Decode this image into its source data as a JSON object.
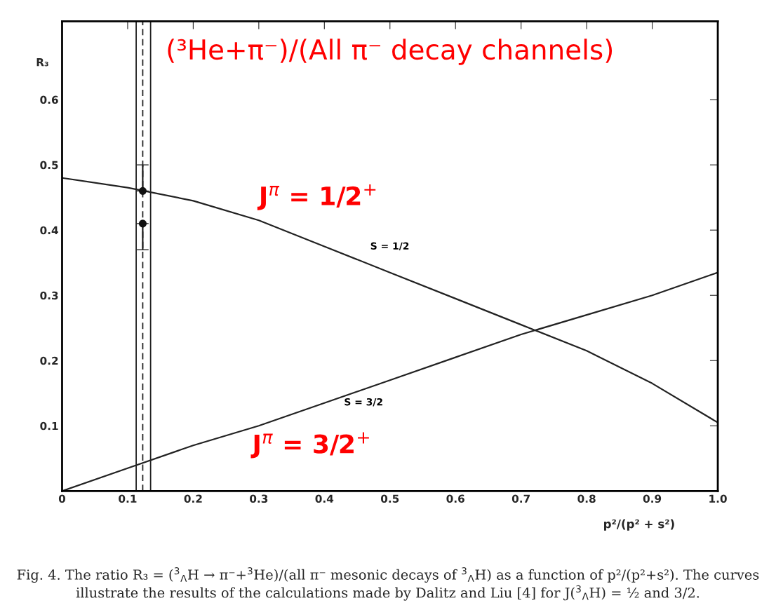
{
  "chart_data": {
    "type": "line",
    "title": "(³He+π⁻)/(All π⁻ decay channels)",
    "ylabel": "R₃",
    "xlabel": "p²/(p² + s²)",
    "xlim": [
      0,
      1.0
    ],
    "ylim": [
      0,
      0.72
    ],
    "xticks": [
      0,
      0.1,
      0.2,
      0.3,
      0.4,
      0.5,
      0.6,
      0.7,
      0.8,
      0.9,
      {
        "value": 1.0,
        "label": "1.0"
      }
    ],
    "yticks": [
      0.1,
      0.2,
      0.3,
      0.4,
      0.5,
      0.6
    ],
    "grid": false,
    "series": [
      {
        "color": "#222222",
        "x": [
          0,
          0.1,
          0.2,
          0.3,
          0.4,
          0.5,
          0.6,
          0.7,
          0.8,
          0.9,
          1.0
        ],
        "values": [
          0.48,
          0.465,
          0.445,
          0.415,
          0.375,
          0.335,
          0.295,
          0.255,
          0.215,
          0.165,
          0.105
        ]
      },
      {
        "color": "#222222",
        "x": [
          0,
          0.1,
          0.2,
          0.3,
          0.4,
          0.5,
          0.6,
          0.7,
          0.8,
          0.9,
          1.0
        ],
        "values": [
          0,
          0.035,
          0.07,
          0.1,
          0.135,
          0.17,
          0.205,
          0.24,
          0.27,
          0.3,
          0.335
        ]
      },
      {
        "type": "scatter",
        "color": "#111111",
        "x": [
          0.123,
          0.123
        ],
        "values": [
          0.46,
          0.41
        ],
        "errors": [
          [
            0.46,
            0.5
          ],
          [
            0.37,
            0.41
          ]
        ]
      }
    ],
    "ref_lines": [
      {
        "axis": "x",
        "value": 0.113,
        "line_style": "solid",
        "color": "#222222"
      },
      {
        "axis": "x",
        "value": 0.123,
        "line_style": "dashed",
        "color": "#222222"
      },
      {
        "axis": "x",
        "value": 0.135,
        "line_style": "solid",
        "color": "#222222"
      }
    ],
    "annotations": [
      "J$^{π}$ = 1/2$^{+}$",
      "S = 1/2",
      "S = 3/2",
      "J$^{π}$ = 3/2$^{+}$",
      "Fig. 4. The ratio R₃ = ($^{3}$$_{Λ}$H → π⁻+$^{3}$He)/(all π⁻ mesonic decays of $^{3}$$_{Λ}$H) as a function of p²/(p²+s²). The curves illustrate the results of the calculations made by Dalitz and Liu [4] for J($^{3}$$_{Λ}$H) = ½ and 3/2."
    ]
  }
}
